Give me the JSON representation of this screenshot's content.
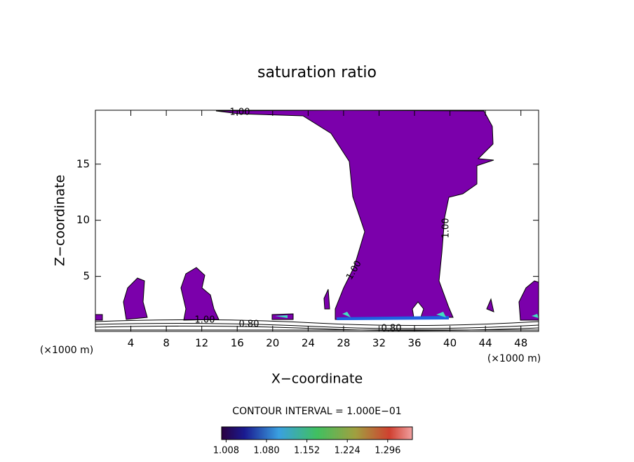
{
  "chart_data": {
    "type": "contour",
    "title": "saturation ratio",
    "x_label": "X−coordinate",
    "y_label": "Z−coordinate",
    "x_unit": "(×1000 m)",
    "contour_interval": "CONTOUR INTERVAL = 1.000E−01",
    "annotations": [
      "1.00",
      "1.00",
      "1.00",
      "1.00",
      "0.80",
      "0.80"
    ],
    "fill_color": "#7b00ab",
    "xlim": [
      0,
      50
    ],
    "xticks": [
      4,
      8,
      12,
      16,
      20,
      24,
      28,
      32,
      36,
      40,
      44,
      48
    ],
    "ylim": [
      0.1,
      19.8
    ],
    "yticks": [
      5,
      10,
      15
    ],
    "clim": [
      1.0,
      1.34
    ],
    "cticks": [
      1.008,
      {
        "value": 1.08,
        "label": "1.080"
      },
      1.152,
      1.224,
      1.296
    ]
  }
}
